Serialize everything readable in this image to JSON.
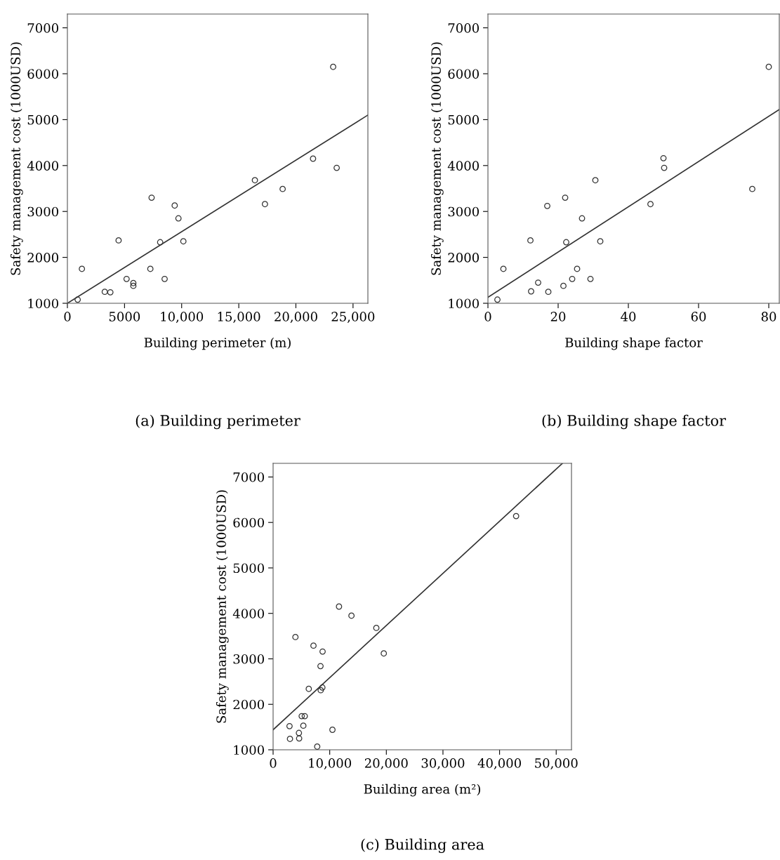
{
  "chart_data": [
    {
      "type": "scatter",
      "title": "(a) Building perimeter",
      "xlabel": "Building perimeter (m)",
      "ylabel": "Safety management cost (1000USD)",
      "xlim": [
        0,
        26300
      ],
      "ylim": [
        1000,
        7300
      ],
      "xticks": [
        0,
        5000,
        {
          "value": 10000,
          "label": "10,000"
        },
        {
          "value": 15000,
          "label": "15,000"
        },
        {
          "value": 20000,
          "label": "20,000"
        },
        {
          "value": 25000,
          "label": "25,000"
        }
      ],
      "yticks": [
        1000,
        2000,
        3000,
        4000,
        5000,
        6000,
        7000
      ],
      "grid": false,
      "legend": false,
      "series": [
        {
          "marker": "circle",
          "color": "#333333",
          "x": [
            900,
            1270,
            3270,
            3760,
            4480,
            5180,
            5770,
            5770,
            7260,
            7370,
            8120,
            8510,
            9390,
            9720,
            10150,
            16410,
            17290,
            18840,
            21500,
            23260,
            23570
          ],
          "values": [
            1080,
            1750,
            1250,
            1240,
            2370,
            1530,
            1440,
            1380,
            1750,
            3300,
            2330,
            1530,
            3130,
            2850,
            2350,
            3680,
            3160,
            3490,
            4150,
            6150,
            3950
          ]
        },
        {
          "type": "line",
          "marker": "none",
          "line_style": "solid",
          "color": "#333333",
          "x": [
            0,
            26300
          ],
          "values": [
            1000,
            5100
          ]
        }
      ]
    },
    {
      "type": "scatter",
      "title": "(b) Building shape factor",
      "xlabel": "Building shape factor",
      "ylabel": "Safety management cost (1000USD)",
      "xlim": [
        0,
        83
      ],
      "ylim": [
        1000,
        7300
      ],
      "xticks": [
        0,
        20,
        40,
        60,
        80
      ],
      "yticks": [
        1000,
        2000,
        3000,
        4000,
        5000,
        6000,
        7000
      ],
      "grid": false,
      "legend": false,
      "series": [
        {
          "marker": "circle",
          "color": "#333333",
          "x": [
            2.7,
            4.4,
            12.1,
            12.3,
            14.3,
            16.9,
            17.2,
            21.5,
            22.0,
            22.3,
            24.0,
            25.4,
            26.8,
            29.2,
            30.6,
            32.0,
            46.3,
            50.0,
            50.2,
            75.3,
            80.0
          ],
          "values": [
            1080,
            1750,
            2370,
            1260,
            1450,
            3120,
            1250,
            1380,
            3300,
            2330,
            1530,
            1750,
            2850,
            1530,
            3680,
            2350,
            3160,
            4160,
            3950,
            3490,
            6150
          ]
        },
        {
          "type": "line",
          "marker": "none",
          "line_style": "solid",
          "color": "#333333",
          "x": [
            0,
            83
          ],
          "values": [
            1130,
            5220
          ]
        }
      ]
    },
    {
      "type": "scatter",
      "title": "(c) Building area",
      "xlabel": "Building area (m²)",
      "ylabel": "Safety management cost (1000USD)",
      "xlim": [
        0,
        52700
      ],
      "ylim": [
        1000,
        7300
      ],
      "xticks": [
        0,
        {
          "value": 10000,
          "label": "10,000"
        },
        {
          "value": 20000,
          "label": "20,000"
        },
        {
          "value": 30000,
          "label": "30,000"
        },
        {
          "value": 40000,
          "label": "40,000"
        },
        {
          "value": 50000,
          "label": "50,000"
        }
      ],
      "yticks": [
        1000,
        2000,
        3000,
        4000,
        5000,
        6000,
        7000
      ],
      "grid": false,
      "legend": false,
      "series": [
        {
          "marker": "circle",
          "color": "#333333",
          "x": [
            2900,
            2980,
            3940,
            4560,
            4600,
            5050,
            5590,
            5340,
            6300,
            7130,
            7790,
            8370,
            8410,
            8700,
            8740,
            10480,
            11640,
            13840,
            18230,
            19550,
            42920
          ],
          "values": [
            1520,
            1240,
            3480,
            1370,
            1250,
            1740,
            1740,
            1530,
            2340,
            3290,
            1070,
            2840,
            2310,
            2370,
            3160,
            1440,
            4150,
            3950,
            3680,
            3120,
            6140
          ]
        },
        {
          "type": "line",
          "marker": "none",
          "line_style": "solid",
          "color": "#333333",
          "x": [
            0,
            51100
          ],
          "values": [
            1440,
            7300
          ]
        }
      ]
    }
  ]
}
